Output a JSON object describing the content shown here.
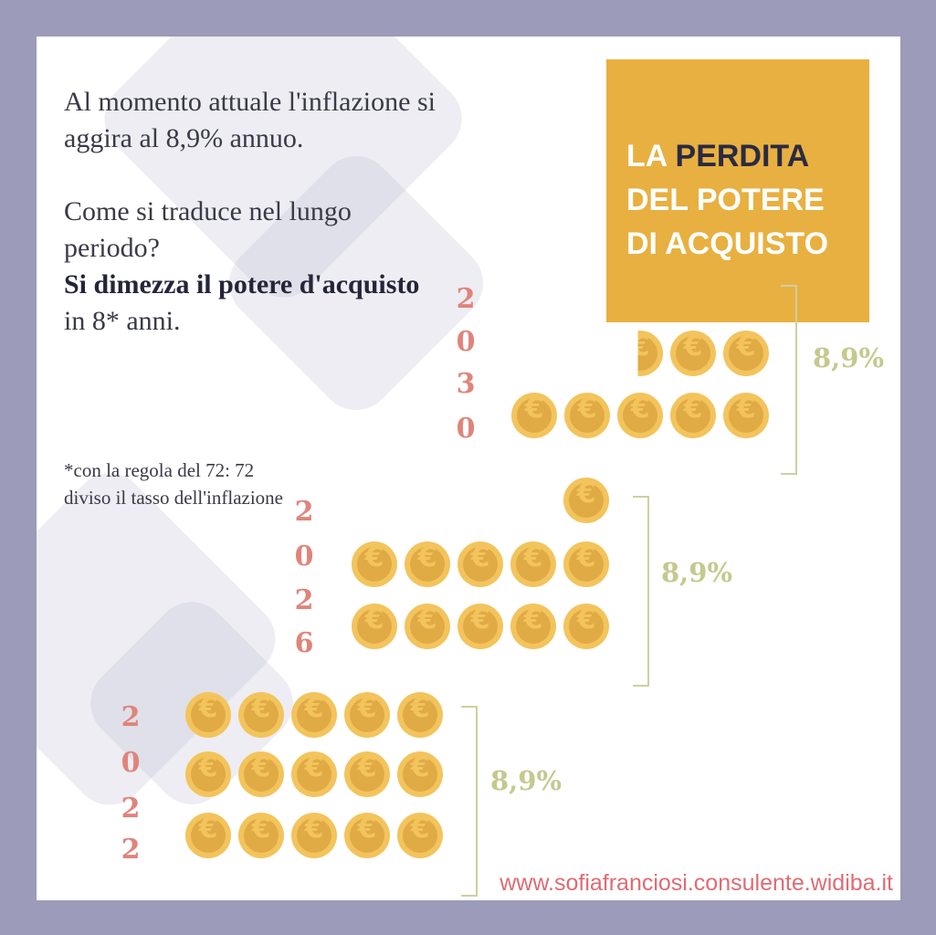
{
  "intro": {
    "line1": "Al momento attuale l'inflazione si aggira al 8,9% annuo.",
    "line2": "Come si traduce nel lungo periodo?",
    "bold": "Si dimezza il potere d'acquisto",
    "rest": " in 8* anni.",
    "note": "*con la regola del 72: 72 diviso il tasso dell'inflazione"
  },
  "title": {
    "pre": "LA ",
    "highlight": "PERDITA",
    "rest": "DEL POTERE DI ACQUISTO"
  },
  "groups": [
    {
      "year": "2030",
      "rate": "8,9%",
      "coins_per_row": [
        2.5,
        5
      ]
    },
    {
      "year": "2026",
      "rate": "8,9%",
      "coins_per_row": [
        1,
        5,
        5
      ]
    },
    {
      "year": "2022",
      "rate": "8,9%",
      "coins_per_row": [
        5,
        5,
        5
      ]
    }
  ],
  "coin_symbol": "€",
  "colors": {
    "frame": "#9c9bb9",
    "gold": "#e8b040",
    "year": "#e0847a",
    "rate": "#c4c98e",
    "site": "#e06b72"
  },
  "website": "www.sofiafranciosi.consulente.widiba.it"
}
